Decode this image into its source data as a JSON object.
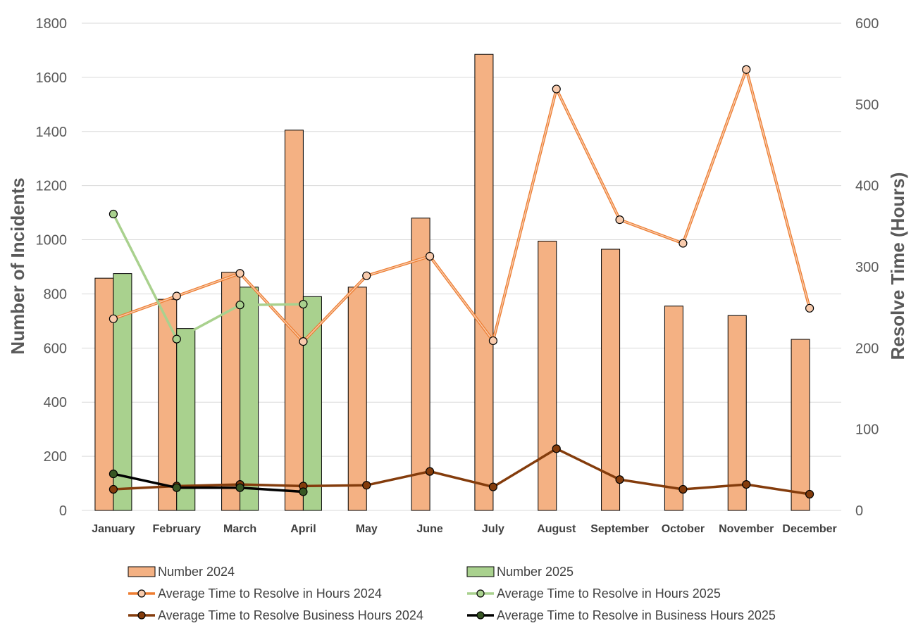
{
  "chart_data": {
    "type": "bar",
    "categories": [
      "January",
      "February",
      "March",
      "April",
      "May",
      "June",
      "July",
      "August",
      "September",
      "October",
      "November",
      "December"
    ],
    "series": [
      {
        "name": "Number 2024",
        "kind": "bar",
        "axis": "left",
        "color": "#F4B183",
        "values": [
          858,
          780,
          880,
          1405,
          825,
          1080,
          1685,
          995,
          965,
          755,
          720,
          632
        ]
      },
      {
        "name": "Number 2025",
        "kind": "bar",
        "axis": "left",
        "color": "#A9D18E",
        "values": [
          875,
          672,
          825,
          790,
          null,
          null,
          null,
          null,
          null,
          null,
          null,
          null
        ]
      },
      {
        "name": "Average Time to Resolve in Hours 2024",
        "kind": "line",
        "axis": "right",
        "color": "#ED7D31",
        "values": [
          236,
          264,
          292,
          208,
          289,
          313,
          209,
          519,
          358,
          329,
          543,
          249
        ]
      },
      {
        "name": "Average Time to Resolve in Hours 2025",
        "kind": "line",
        "axis": "right",
        "color": "#A9D18E",
        "values": [
          365,
          211,
          253,
          254,
          null,
          null,
          null,
          null,
          null,
          null,
          null,
          null
        ]
      },
      {
        "name": "Average Time to Resolve Business Hours 2024",
        "kind": "line",
        "axis": "right",
        "color": "#843C0C",
        "values": [
          26,
          30,
          32,
          30,
          31,
          48,
          29,
          76,
          38,
          26,
          32,
          20
        ]
      },
      {
        "name": "Average Time to Resolve in Business Hours 2025",
        "kind": "line",
        "axis": "right",
        "color": "#000000",
        "marker": "#375623",
        "values": [
          45,
          28,
          28,
          23,
          null,
          null,
          null,
          null,
          null,
          null,
          null,
          null
        ]
      }
    ],
    "ylabel": "Number of Incidents",
    "y2label": "Resolve Time (Hours)",
    "ylim": [
      0,
      1800
    ],
    "y2lim": [
      0,
      600
    ],
    "yticks": [
      "0",
      "200",
      "400",
      "600",
      "800",
      "1000",
      "1200",
      "1400",
      "1600",
      "1800"
    ],
    "y2ticks": [
      "0",
      "100",
      "200",
      "300",
      "400",
      "500",
      "600"
    ],
    "grid": true,
    "legend_position": "bottom"
  }
}
